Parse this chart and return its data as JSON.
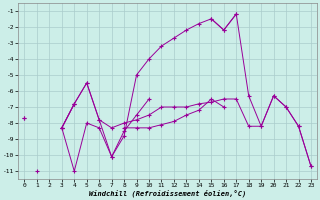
{
  "xlabel": "Windchill (Refroidissement éolien,°C)",
  "background_color": "#cceee8",
  "line_color": "#990099",
  "grid_color": "#aacccc",
  "xlim": [
    -0.5,
    23.5
  ],
  "ylim": [
    -11.5,
    -0.5
  ],
  "yticks": [
    -11,
    -10,
    -9,
    -8,
    -7,
    -6,
    -5,
    -4,
    -3,
    -2,
    -1
  ],
  "xticks": [
    0,
    1,
    2,
    3,
    4,
    5,
    6,
    7,
    8,
    9,
    10,
    11,
    12,
    13,
    14,
    15,
    16,
    17,
    18,
    19,
    20,
    21,
    22,
    23
  ],
  "series": [
    [
      null,
      -11.0,
      null,
      -8.3,
      -6.8,
      -5.5,
      -7.8,
      -10.1,
      -8.8,
      -5.0,
      -4.0,
      -3.2,
      -2.7,
      -2.2,
      -1.8,
      -1.5,
      -2.2,
      -1.2,
      null,
      null,
      null,
      null,
      null,
      null
    ],
    [
      -7.7,
      null,
      null,
      -8.3,
      -6.8,
      -5.5,
      -7.8,
      -8.3,
      -8.0,
      -7.8,
      -7.5,
      -7.0,
      -7.0,
      -7.0,
      -6.8,
      -6.7,
      -6.5,
      -6.5,
      -8.2,
      -8.2,
      -6.3,
      -7.0,
      -8.2,
      -10.7
    ],
    [
      null,
      null,
      null,
      -8.3,
      -11.0,
      -8.0,
      -8.3,
      -10.1,
      -8.5,
      -7.5,
      -6.5,
      null,
      null,
      null,
      null,
      null,
      null,
      null,
      null,
      null,
      null,
      null,
      null,
      null
    ],
    [
      -7.7,
      null,
      null,
      -8.3,
      -6.8,
      null,
      null,
      null,
      -8.3,
      -8.3,
      -8.3,
      -8.1,
      -7.9,
      -7.5,
      -7.2,
      -6.5,
      -7.0,
      null,
      null,
      null,
      null,
      null,
      null,
      null
    ],
    [
      null,
      null,
      null,
      null,
      null,
      null,
      null,
      null,
      null,
      null,
      null,
      null,
      null,
      null,
      null,
      -1.5,
      -2.2,
      -1.2,
      -6.3,
      -8.2,
      -6.3,
      -7.0,
      -8.2,
      -10.7
    ]
  ]
}
